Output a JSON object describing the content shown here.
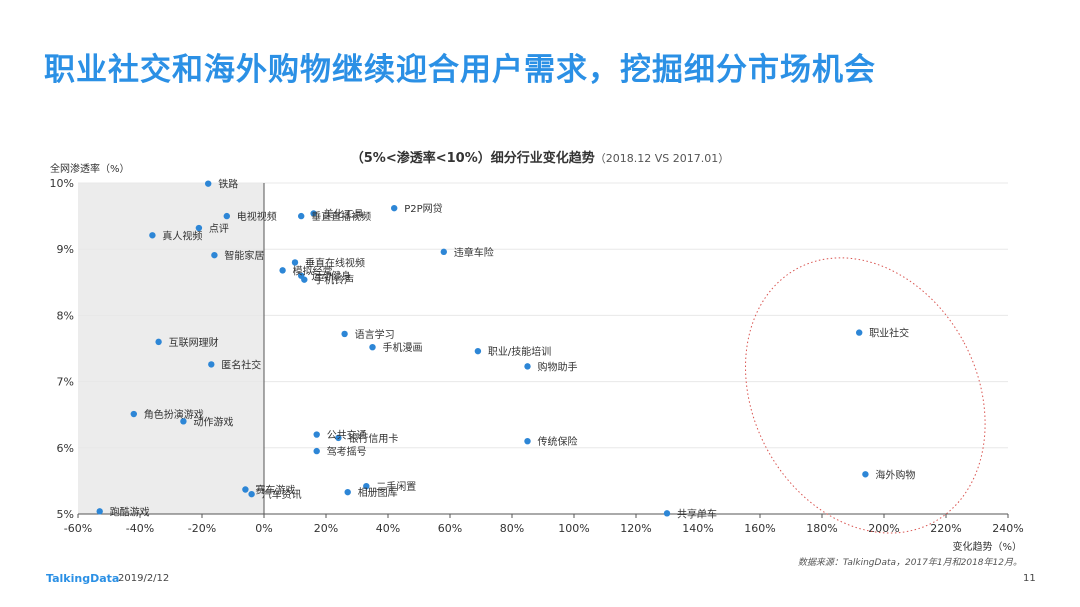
{
  "page": {
    "title": "职业社交和海外购物继续迎合用户需求，挖掘细分市场机会",
    "source": "数据来源：TalkingData，2017年1月和2018年12月。",
    "footer_logo": "TalkingData",
    "footer_date": "2019/2/12",
    "page_number": "11"
  },
  "colors": {
    "title": "#2b90e5",
    "point": "#2d86d6",
    "shade": "#ececec",
    "ellipse": "#d9534f"
  },
  "chart_data": {
    "type": "scatter",
    "title": "（5%<渗透率<10%）细分行业变化趋势",
    "subtitle": "（2018.12  VS 2017.01）",
    "xlabel": "变化趋势（%）",
    "ylabel": "全网渗透率（%）",
    "xlim": [
      -60,
      240
    ],
    "ylim": [
      5,
      10
    ],
    "xticks": [
      -60,
      -40,
      -20,
      0,
      20,
      40,
      60,
      80,
      100,
      120,
      140,
      160,
      180,
      200,
      220,
      240
    ],
    "xtick_labels": [
      "-60%",
      "-40%",
      "-20%",
      "0%",
      "20%",
      "40%",
      "60%",
      "80%",
      "100%",
      "120%",
      "140%",
      "160%",
      "180%",
      "200%",
      "220%",
      "240%"
    ],
    "yticks": [
      5,
      6,
      7,
      8,
      9,
      10
    ],
    "ytick_labels": [
      "5%",
      "6%",
      "7%",
      "8%",
      "9%",
      "10%"
    ],
    "shaded_region_x": [
      -60,
      0
    ],
    "highlight_ellipse_around": [
      "职业社交",
      "海外购物"
    ],
    "points": [
      {
        "label": "铁路",
        "x": -18,
        "y": 9.99
      },
      {
        "label": "电视视频",
        "x": -12,
        "y": 9.5
      },
      {
        "label": "美化工具",
        "x": 16,
        "y": 9.54
      },
      {
        "label": "P2P网贷",
        "x": 42,
        "y": 9.62
      },
      {
        "label": "点评",
        "x": -21,
        "y": 9.32
      },
      {
        "label": "真人视频",
        "x": -36,
        "y": 9.21
      },
      {
        "label": "垂直直播视频",
        "x": 12,
        "y": 9.5
      },
      {
        "label": "违章车险",
        "x": 58,
        "y": 8.96
      },
      {
        "label": "智能家居",
        "x": -16,
        "y": 8.91
      },
      {
        "label": "垂直在线视频",
        "x": 10,
        "y": 8.8
      },
      {
        "label": "模拟经营",
        "x": 6,
        "y": 8.68
      },
      {
        "label": "运动健身",
        "x": 12,
        "y": 8.6
      },
      {
        "label": "手机铃声",
        "x": 13,
        "y": 8.54
      },
      {
        "label": "职业社交",
        "x": 192,
        "y": 7.74
      },
      {
        "label": "语言学习",
        "x": 26,
        "y": 7.72
      },
      {
        "label": "互联网理财",
        "x": -34,
        "y": 7.6
      },
      {
        "label": "手机漫画",
        "x": 35,
        "y": 7.52
      },
      {
        "label": "职业/技能培训",
        "x": 69,
        "y": 7.46
      },
      {
        "label": "匿名社交",
        "x": -17,
        "y": 7.26
      },
      {
        "label": "购物助手",
        "x": 85,
        "y": 7.23
      },
      {
        "label": "角色扮演游戏",
        "x": -42,
        "y": 6.51
      },
      {
        "label": "动作游戏",
        "x": -26,
        "y": 6.4
      },
      {
        "label": "公共交通",
        "x": 17,
        "y": 6.2
      },
      {
        "label": "银行信用卡",
        "x": 24,
        "y": 6.15
      },
      {
        "label": "传统保险",
        "x": 85,
        "y": 6.1
      },
      {
        "label": "驾考摇号",
        "x": 17,
        "y": 5.95
      },
      {
        "label": "海外购物",
        "x": 194,
        "y": 5.6
      },
      {
        "label": "二手闲置",
        "x": 33,
        "y": 5.42
      },
      {
        "label": "赛车游戏",
        "x": -6,
        "y": 5.37
      },
      {
        "label": "相册图库",
        "x": 27,
        "y": 5.33
      },
      {
        "label": "汽车资讯",
        "x": -4,
        "y": 5.3
      },
      {
        "label": "跑酷游戏",
        "x": -53,
        "y": 5.04
      },
      {
        "label": "共享单车",
        "x": 130,
        "y": 5.01
      }
    ]
  }
}
